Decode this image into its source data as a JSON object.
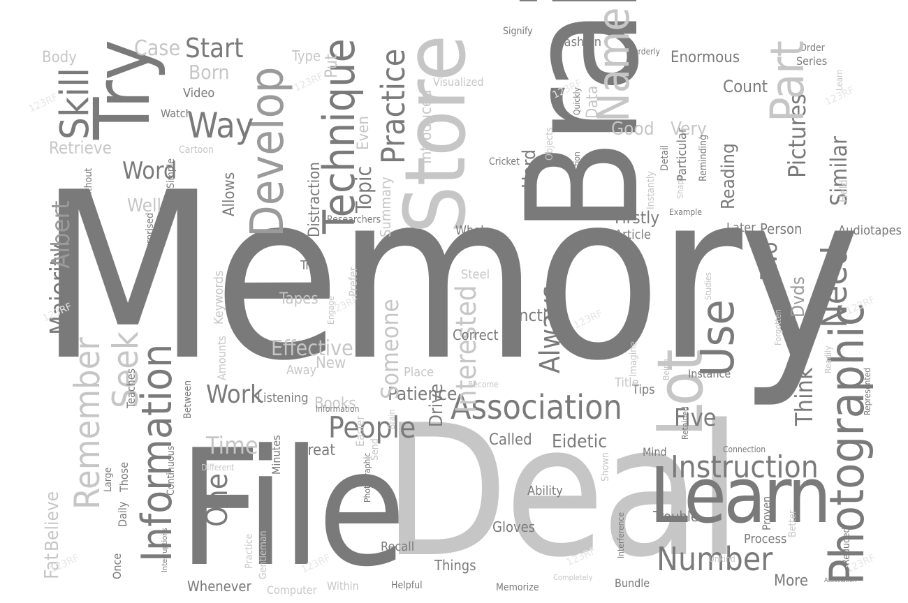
{
  "word_cloud": {
    "dark": [
      "Memory",
      "Deal",
      "File",
      "Brain",
      "Store",
      "Try",
      "Learn",
      "Association",
      "Instruction",
      "Number",
      "Photographic",
      "Technique",
      "Develop",
      "Lot",
      "Use",
      "Practice",
      "People",
      "Work",
      "Time",
      "One",
      "Skill",
      "Start",
      "Way",
      "Word",
      "Majority",
      "Information",
      "Remember",
      "Seek",
      "Need",
      "Always",
      "Five",
      "Think",
      "Called",
      "Eidetic",
      "Interested",
      "Patience",
      "Albert",
      "Allows",
      "Topic",
      "Two",
      "Pictures",
      "Similar",
      "Firstly",
      "Hard",
      "Good",
      "Very",
      "Count",
      "Enormous",
      "Series",
      "Order",
      "Fashion",
      "Watch",
      "Video",
      "Cartoon",
      "Retrieve",
      "Correct",
      "Function",
      "Drive",
      "Steel",
      "Trap",
      "Process",
      "More",
      "Bundle",
      "Things",
      "Gloves",
      "Recall",
      "Whenever",
      "Listening",
      "Tips",
      "Instance",
      "Mind",
      "Trouble",
      "Later",
      "Person",
      "Audiotapes",
      "Dvds",
      "Great",
      "Article",
      "Books",
      "Reading"
    ],
    "light": [
      "Name",
      "Part",
      "Effective",
      "Someone",
      "Tapes",
      "Body",
      "Case",
      "Type",
      "Put",
      "Born",
      "Even",
      "Summary",
      "Introduced",
      "Visualized",
      "Objects",
      "Data",
      "Fat",
      "Believe",
      "Large",
      "Those",
      "Daily",
      "Once",
      "Teaches",
      "Keywords",
      "Amounts",
      "Well",
      "Without",
      "Simple",
      "Surprised",
      "Between",
      "Continuous",
      "Minutes",
      "Different",
      "Easier",
      "Send",
      "Become",
      "Place",
      "New",
      "Engage",
      "Prefer",
      "Away",
      "Distraction",
      "Researchers",
      "Important",
      "Whole",
      "Title",
      "Ability",
      "Shown",
      "Proven",
      "Better",
      "Studies",
      "Forgotten",
      "Represented",
      "Reduced",
      "Association",
      "Completely",
      "Memorize",
      "Computer",
      "Helpful",
      "Within",
      "Unkind",
      "Held",
      "Example",
      "Instantly",
      "Shape",
      "Detail",
      "Reminding",
      "Particular",
      "Quickly",
      "Instruction",
      "Learn",
      "Signify",
      "Orderly",
      "Cricket",
      "Gentleman",
      "Implement",
      "Interruptions",
      "Reference",
      "Interference",
      "Fingers",
      "Imagine",
      "Being",
      "Retained",
      "Connection",
      "Readily",
      "Practice",
      "Photographic",
      "Brain",
      "Information"
    ]
  },
  "watermark": "123RF"
}
